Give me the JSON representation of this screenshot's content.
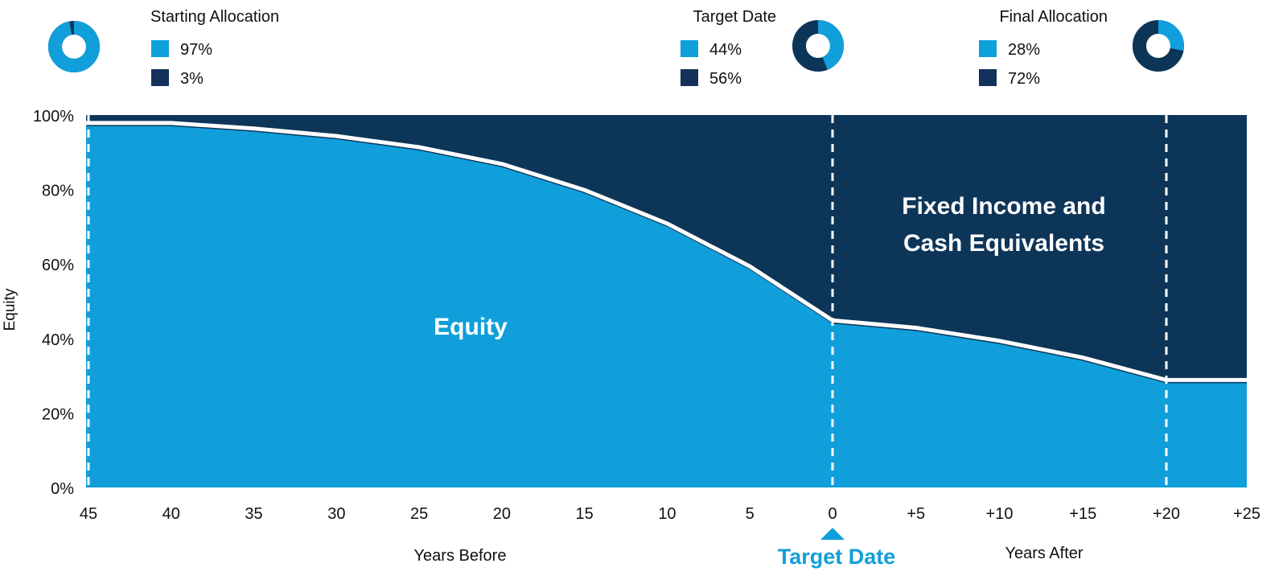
{
  "colors": {
    "equity": "#109fda",
    "fixed_income": "#0d3558",
    "legend_equity": "#0ea0db",
    "legend_fixed": "#13315a",
    "accent": "#109fda",
    "line": "#ffffff"
  },
  "donuts": [
    {
      "title": "Starting Allocation",
      "equity_pct": "97%",
      "fixed_pct": "3%",
      "equity": 97,
      "fixed": 3
    },
    {
      "title": "Target Date",
      "equity_pct": "44%",
      "fixed_pct": "56%",
      "equity": 44,
      "fixed": 56
    },
    {
      "title": "Final Allocation",
      "equity_pct": "28%",
      "fixed_pct": "72%",
      "equity": 28,
      "fixed": 72
    }
  ],
  "chart_data": {
    "type": "area",
    "ylabel": "Equity",
    "ylim": [
      0,
      100
    ],
    "yticks": [
      "0%",
      "20%",
      "40%",
      "60%",
      "80%",
      "100%"
    ],
    "xlim": [
      -45,
      25
    ],
    "xticks": [
      "45",
      "40",
      "35",
      "30",
      "25",
      "20",
      "15",
      "10",
      "5",
      "0",
      "+5",
      "+10",
      "+15",
      "+20",
      "+25"
    ],
    "xlabel_before": "Years Before",
    "xlabel_after": "Years After",
    "target_label": "Target Date",
    "reference_lines": [
      -45,
      0,
      20
    ],
    "area_labels": {
      "equity": "Equity",
      "fixed_line1": "Fixed Income and",
      "fixed_line2": "Cash Equivalents"
    },
    "x": [
      -45,
      -40,
      -35,
      -30,
      -25,
      -20,
      -15,
      -10,
      -5,
      0,
      5,
      10,
      15,
      20,
      25
    ],
    "equity": [
      97,
      97,
      95.5,
      93.5,
      90.5,
      86,
      79,
      70,
      58.5,
      44,
      42,
      38.5,
      34,
      28,
      28
    ]
  }
}
